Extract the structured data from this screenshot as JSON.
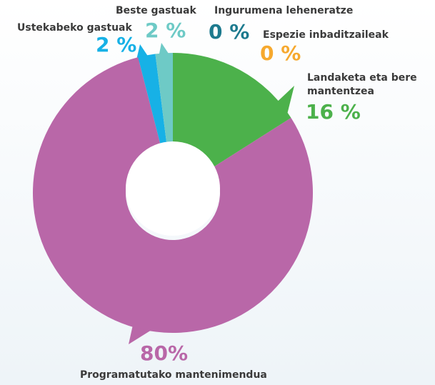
{
  "chart_data": {
    "type": "pie",
    "categories": [
      "Landaketa eta bere mantentzea",
      "Programatutako mantenimendua",
      "Ustekabeko gastuak",
      "Beste gastuak",
      "Ingurumena leheneratze",
      "Espezie inbaditzaileak"
    ],
    "values": [
      16,
      80,
      2,
      2,
      0,
      0
    ],
    "value_labels": [
      "16 %",
      "80%",
      "2 %",
      "2 %",
      "0 %",
      "0 %"
    ],
    "colors": [
      "#4cb14b",
      "#b967a8",
      "#17b1e6",
      "#6ecac6",
      "#1d7a8e",
      "#f6a92e"
    ]
  }
}
